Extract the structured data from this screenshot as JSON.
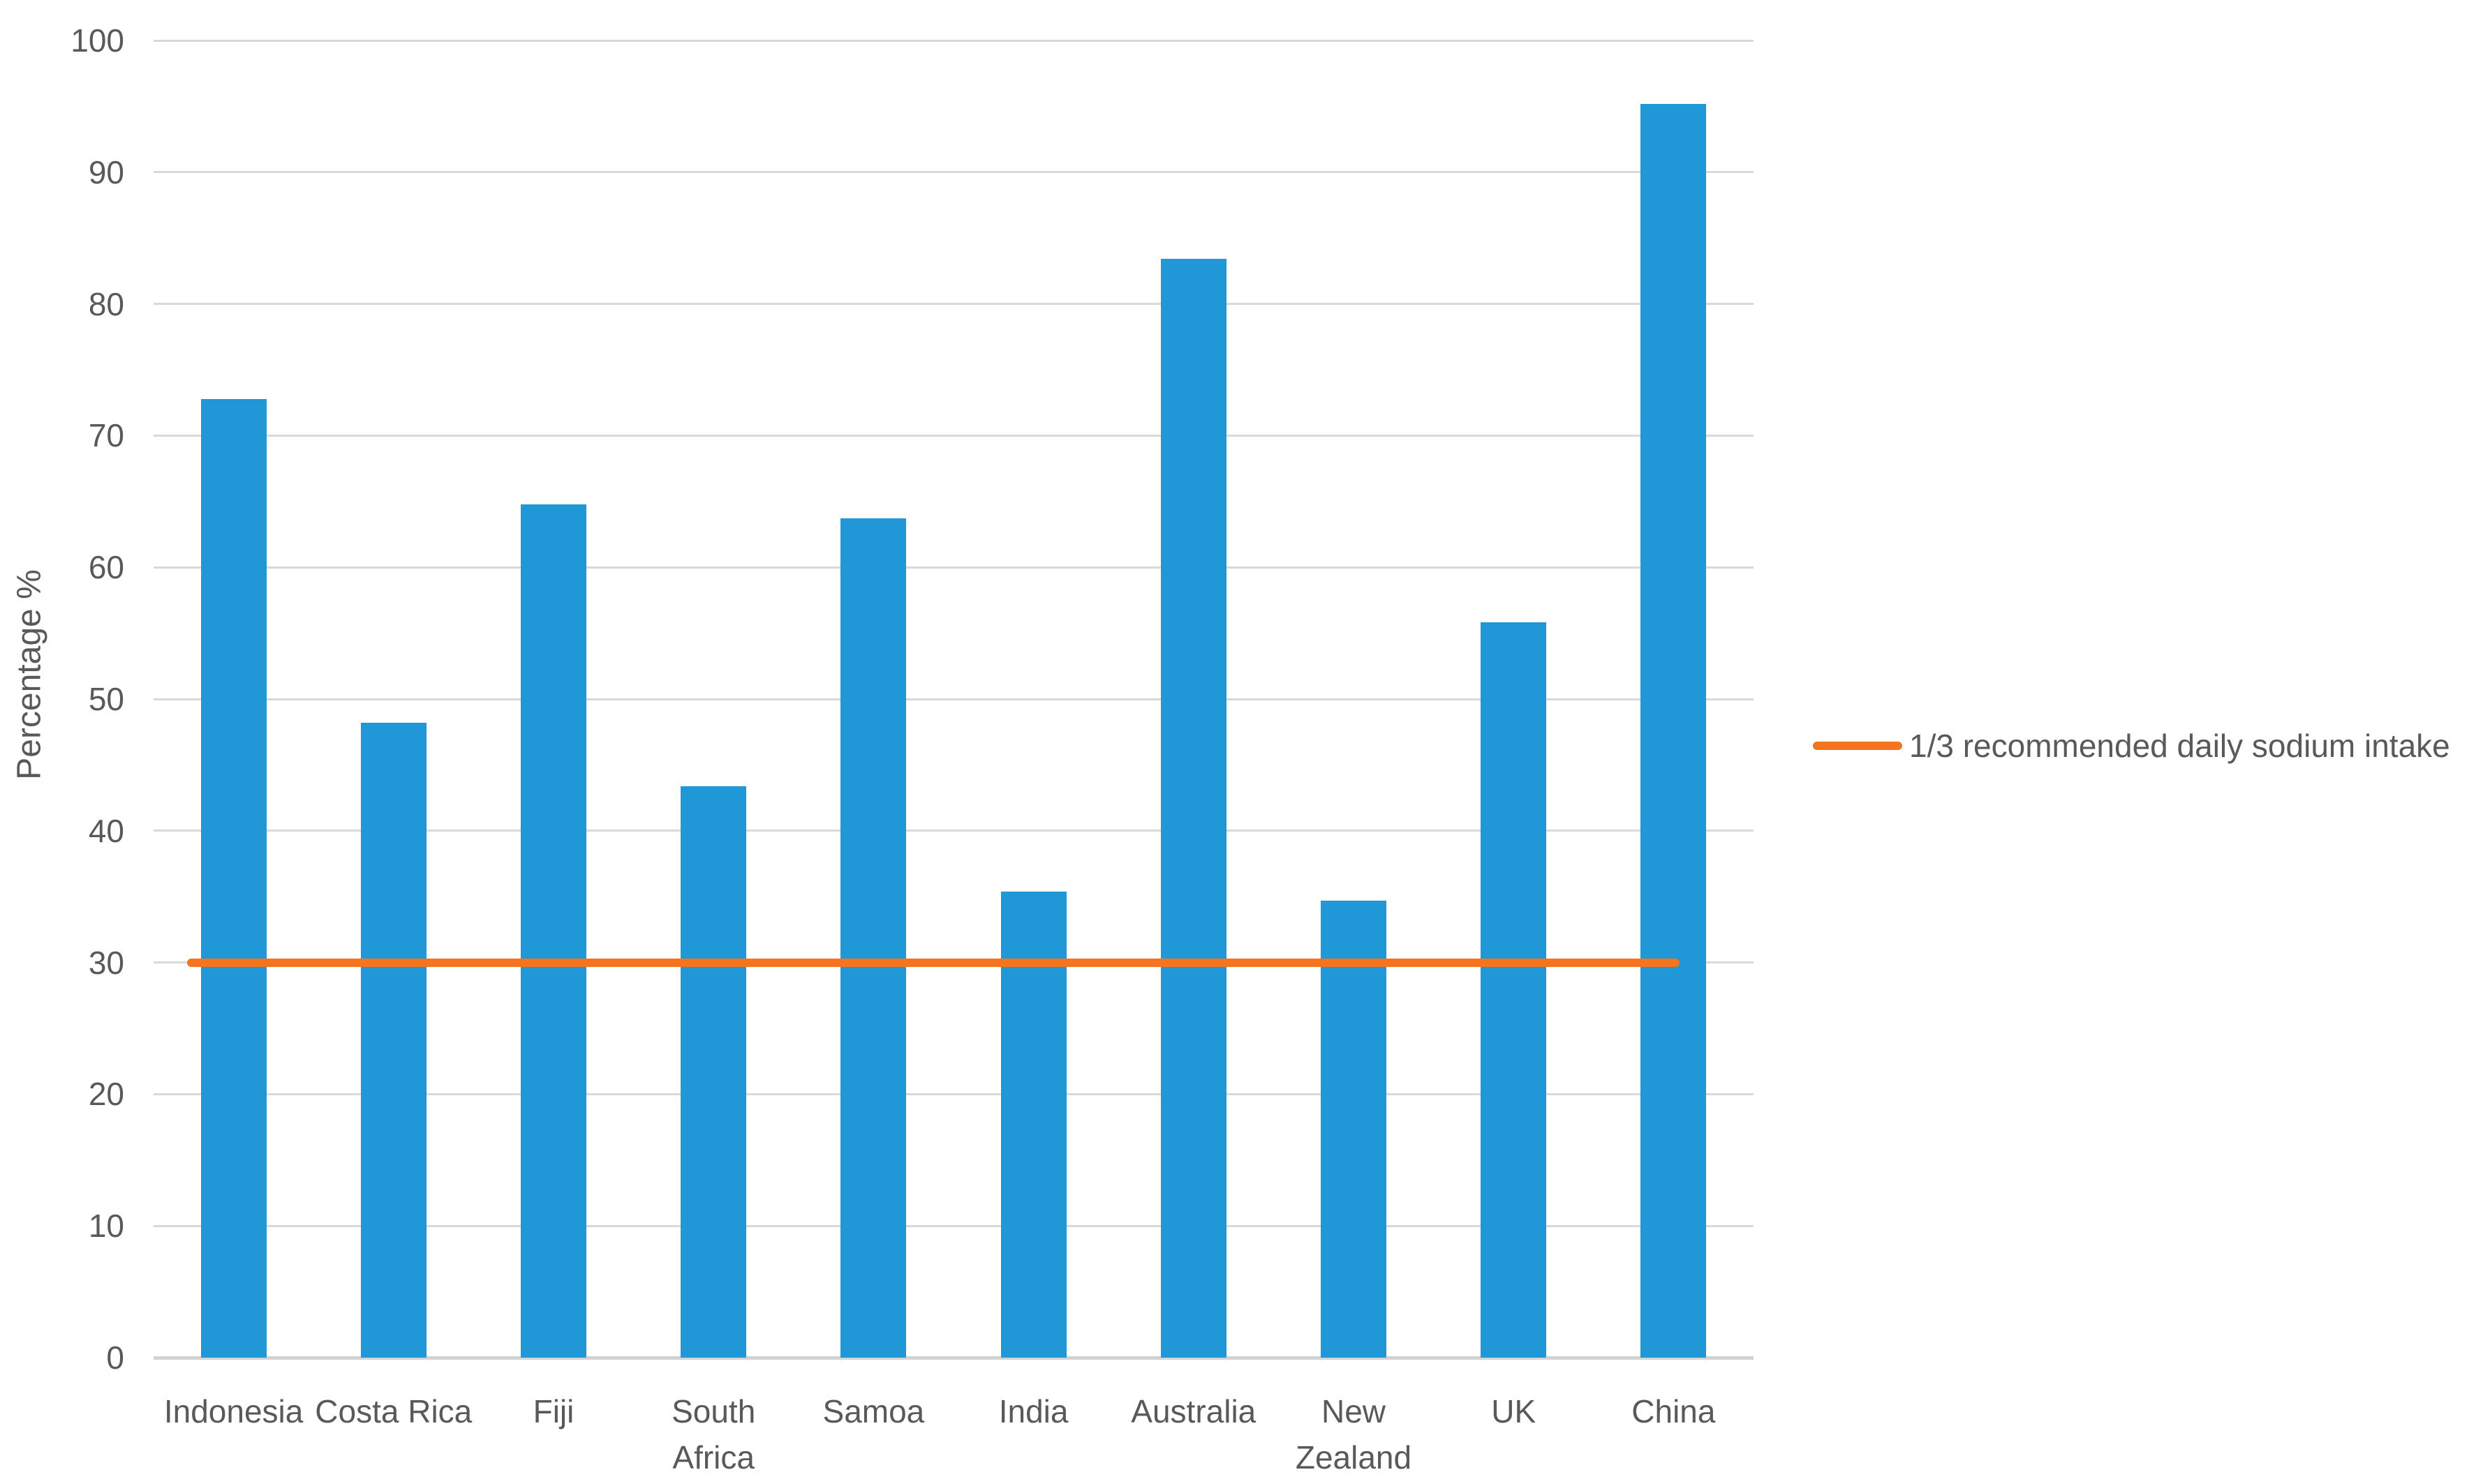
{
  "chart_data": {
    "type": "bar",
    "title": "",
    "xlabel": "",
    "ylabel": "Percentage %",
    "ylim": [
      0,
      100
    ],
    "yticks": [
      0,
      10,
      20,
      30,
      40,
      50,
      60,
      70,
      80,
      90,
      100
    ],
    "grid": true,
    "legend_position": "right",
    "categories": [
      "Indonesia",
      "Costa Rica",
      "Fiji",
      "South Africa",
      "Samoa",
      "India",
      "Australia",
      "New Zealand",
      "UK",
      "China"
    ],
    "category_label_lines": [
      [
        "Indonesia"
      ],
      [
        "Costa Rica"
      ],
      [
        "Fiji"
      ],
      [
        "South",
        "Africa"
      ],
      [
        "Samoa"
      ],
      [
        "India"
      ],
      [
        "Australia"
      ],
      [
        "New",
        "Zealand"
      ],
      [
        "UK"
      ],
      [
        "China"
      ]
    ],
    "values": [
      72.8,
      48.2,
      64.8,
      43.4,
      63.7,
      35.4,
      83.4,
      34.7,
      55.8,
      95.2
    ],
    "reference_line": {
      "value": 30,
      "label": "1/3 recommended daily sodium intake"
    }
  },
  "legend": {
    "label": "1/3 recommended daily sodium intake"
  },
  "colors": {
    "bar": "#2097d6",
    "reference_line": "#f5741d",
    "gridline": "#d9d9d9",
    "axis_line": "#d2d2d2",
    "text": "#595959",
    "background": "#ffffff"
  }
}
